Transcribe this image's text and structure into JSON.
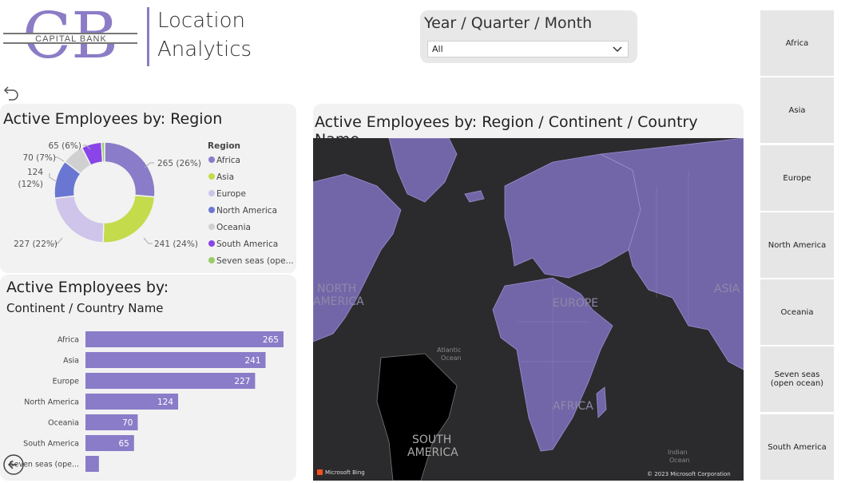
{
  "brand": {
    "logo_letters": "CB",
    "logo_text": "CAPITAL BANK"
  },
  "page_title": {
    "line1": "Location",
    "line2": "Analytics"
  },
  "slicer": {
    "label": "Year / Quarter / Month",
    "value": "All"
  },
  "donut": {
    "title": "Active Employees by: Region",
    "legend_title": "Region",
    "items": [
      {
        "label": "Africa",
        "data_label": "265 (26%)",
        "color": "#8a7cc8"
      },
      {
        "label": "Asia",
        "data_label": "241 (24%)",
        "color": "#c4db4c"
      },
      {
        "label": "Europe",
        "data_label": "227 (22%)",
        "color": "#cfc5ea"
      },
      {
        "label": "North America",
        "data_label_line1": "124",
        "data_label_line2": "(12%)",
        "color": "#6a77d2"
      },
      {
        "label": "Oceania",
        "data_label": "70 (7%)",
        "color": "#d0d0d0"
      },
      {
        "label": "South America",
        "data_label": "65 (6%)",
        "color": "#8a45e8"
      },
      {
        "label": "Seven seas (ope...",
        "color": "#99cc66"
      }
    ]
  },
  "bars": {
    "title_line1": "Active Employees by:",
    "title_line2": "Continent / Country Name",
    "color": "#8a7cc8"
  },
  "map": {
    "title": "Active Employees by: Region / Continent / Country Name",
    "labels": {
      "north_america_1": "NORTH",
      "north_america_2": "AMERICA",
      "europe": "EUROPE",
      "asia": "ASIA",
      "africa": "AFRICA",
      "atlantic_1": "Atlantic",
      "atlantic_2": "Ocean",
      "south_america_1": "SOUTH",
      "south_america_2": "AMERICA",
      "indian_1": "Indian",
      "indian_2": "Ocean",
      "bing": "Microsoft Bing",
      "copyright": "© 2023 Microsoft Corporation"
    }
  },
  "region_slicer": [
    "Africa",
    "Asia",
    "Europe",
    "North America",
    "Oceania",
    "Seven seas (open ocean)",
    "South America"
  ],
  "chart_data": {
    "type": "bar",
    "categories": [
      "Africa",
      "Asia",
      "Europe",
      "North America",
      "Oceania",
      "South America",
      "Seven seas (ope..."
    ],
    "values": [
      265,
      241,
      227,
      124,
      70,
      65,
      18
    ],
    "data_labels": [
      "265",
      "241",
      "227",
      "124",
      "70",
      "65",
      ""
    ],
    "title": "Active Employees by: Continent / Country Name",
    "xlim": [
      0,
      280
    ]
  }
}
